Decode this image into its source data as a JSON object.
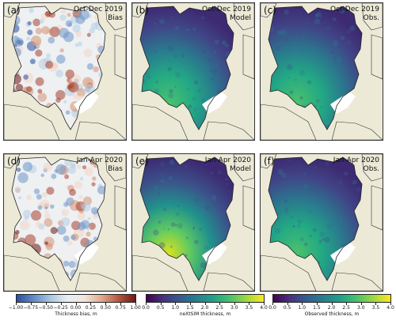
{
  "panels": [
    {
      "id": "a",
      "label": "(a)",
      "title_line1": "Oct-Dec 2019",
      "title_line2": "Bias",
      "kind": "bias"
    },
    {
      "id": "b",
      "label": "(b)",
      "title_line1": "Oct-Dec 2019",
      "title_line2": "Model",
      "kind": "thick"
    },
    {
      "id": "c",
      "label": "(c)",
      "title_line1": "Oct-Dec 2019",
      "title_line2": "Obs.",
      "kind": "thick"
    },
    {
      "id": "d",
      "label": "(d)",
      "title_line1": "Jan-Apr 2020",
      "title_line2": "Bias",
      "kind": "bias"
    },
    {
      "id": "e",
      "label": "(e)",
      "title_line1": "Jan-Apr 2020",
      "title_line2": "Model",
      "kind": "thick"
    },
    {
      "id": "f",
      "label": "(f)",
      "title_line1": "Jan-Apr 2020",
      "title_line2": "Obs.",
      "kind": "thick"
    }
  ],
  "colorbars": [
    {
      "id": "bias",
      "label": "Thickness bias, m",
      "ticks": [
        "−1.00",
        "−0.75",
        "−0.50",
        "−0.25",
        "0.00",
        "0.25",
        "0.50",
        "0.75",
        "1.00"
      ],
      "colors": [
        "#2b4f9e",
        "#5f8cc4",
        "#a8c8e1",
        "#e9eef3",
        "#f1e5dc",
        "#e0a98b",
        "#b8573f",
        "#6e1614"
      ]
    },
    {
      "id": "model",
      "label": "neXtSIM thickness, m",
      "ticks": [
        "0.0",
        "0.5",
        "1.0",
        "1.5",
        "2.0",
        "2.5",
        "3.0",
        "3.5",
        "4.0"
      ],
      "colors": [
        "#440154",
        "#46337e",
        "#365c8d",
        "#277f8e",
        "#1fa187",
        "#4ac16d",
        "#9fda3a",
        "#fde725"
      ]
    },
    {
      "id": "obs",
      "label": "Observed thickness, m",
      "ticks": [
        "0.0",
        "0.5",
        "1.0",
        "1.5",
        "2.0",
        "2.5",
        "3.0",
        "3.5",
        "4.0"
      ],
      "colors": [
        "#440154",
        "#46337e",
        "#365c8d",
        "#277f8e",
        "#1fa187",
        "#4ac16d",
        "#9fda3a",
        "#fde725"
      ]
    }
  ]
}
